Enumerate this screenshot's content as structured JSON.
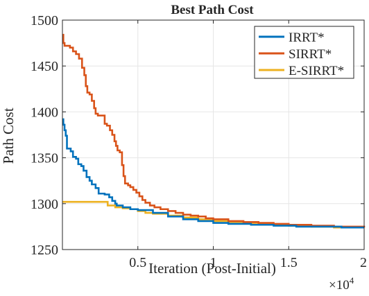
{
  "chart_data": {
    "type": "line",
    "title": "Best Path Cost",
    "xlabel": "Iteration (Post-Initial)",
    "ylabel": "Path Cost",
    "x_exponent_label": "×10",
    "x_exponent": "4",
    "xlim": [
      0,
      20000
    ],
    "ylim": [
      1250,
      1500
    ],
    "xticks": [
      {
        "value": 5000,
        "label": "0.5"
      },
      {
        "value": 10000,
        "label": "1"
      },
      {
        "value": 15000,
        "label": "1.5"
      },
      {
        "value": 20000,
        "label": "2"
      }
    ],
    "yticks": [
      {
        "value": 1250,
        "label": "1250"
      },
      {
        "value": 1300,
        "label": "1300"
      },
      {
        "value": 1350,
        "label": "1350"
      },
      {
        "value": 1400,
        "label": "1400"
      },
      {
        "value": 1450,
        "label": "1450"
      },
      {
        "value": 1500,
        "label": "1500"
      }
    ],
    "grid": true,
    "legend_position": "top-right",
    "series": [
      {
        "name": "IRRT*",
        "color": "#0072BD",
        "step": true,
        "points": [
          [
            0,
            1392
          ],
          [
            60,
            1386
          ],
          [
            140,
            1380
          ],
          [
            220,
            1374
          ],
          [
            300,
            1360
          ],
          [
            550,
            1357
          ],
          [
            700,
            1351
          ],
          [
            900,
            1349
          ],
          [
            1050,
            1343
          ],
          [
            1250,
            1341
          ],
          [
            1400,
            1336
          ],
          [
            1600,
            1329
          ],
          [
            1800,
            1325
          ],
          [
            1950,
            1321
          ],
          [
            2200,
            1317
          ],
          [
            2400,
            1311
          ],
          [
            2800,
            1310
          ],
          [
            3100,
            1307
          ],
          [
            3300,
            1303
          ],
          [
            3500,
            1300
          ],
          [
            3600,
            1298
          ],
          [
            4000,
            1296
          ],
          [
            4500,
            1294
          ],
          [
            5000,
            1293
          ],
          [
            6000,
            1290
          ],
          [
            7000,
            1286
          ],
          [
            8000,
            1283
          ],
          [
            9000,
            1281
          ],
          [
            10000,
            1279
          ],
          [
            11000,
            1278
          ],
          [
            12500,
            1277
          ],
          [
            14000,
            1276
          ],
          [
            15500,
            1275
          ],
          [
            17000,
            1275
          ],
          [
            18500,
            1274
          ],
          [
            20000,
            1274
          ]
        ]
      },
      {
        "name": "SIRRT*",
        "color": "#D95319",
        "step": true,
        "points": [
          [
            0,
            1484
          ],
          [
            60,
            1475
          ],
          [
            140,
            1472
          ],
          [
            500,
            1470
          ],
          [
            700,
            1466
          ],
          [
            900,
            1463
          ],
          [
            1100,
            1458
          ],
          [
            1300,
            1448
          ],
          [
            1450,
            1440
          ],
          [
            1550,
            1428
          ],
          [
            1650,
            1421
          ],
          [
            1800,
            1419
          ],
          [
            1950,
            1412
          ],
          [
            2100,
            1404
          ],
          [
            2200,
            1398
          ],
          [
            2350,
            1396
          ],
          [
            2600,
            1396
          ],
          [
            2800,
            1387
          ],
          [
            2950,
            1385
          ],
          [
            3150,
            1380
          ],
          [
            3300,
            1375
          ],
          [
            3450,
            1368
          ],
          [
            3550,
            1363
          ],
          [
            3650,
            1358
          ],
          [
            3800,
            1356
          ],
          [
            3950,
            1342
          ],
          [
            4050,
            1330
          ],
          [
            4150,
            1322
          ],
          [
            4350,
            1320
          ],
          [
            4500,
            1318
          ],
          [
            4700,
            1315
          ],
          [
            4900,
            1312
          ],
          [
            5100,
            1308
          ],
          [
            5300,
            1304
          ],
          [
            5500,
            1301
          ],
          [
            5800,
            1298
          ],
          [
            6100,
            1296
          ],
          [
            6500,
            1294
          ],
          [
            7000,
            1292
          ],
          [
            7500,
            1290
          ],
          [
            8000,
            1288
          ],
          [
            8500,
            1287
          ],
          [
            9000,
            1286
          ],
          [
            9500,
            1284
          ],
          [
            10000,
            1283
          ],
          [
            11000,
            1281
          ],
          [
            12000,
            1280
          ],
          [
            13000,
            1279
          ],
          [
            14000,
            1278
          ],
          [
            15000,
            1277
          ],
          [
            16500,
            1276
          ],
          [
            18000,
            1275
          ],
          [
            20000,
            1274
          ]
        ]
      },
      {
        "name": "E-SIRRT*",
        "color": "#EDB120",
        "step": true,
        "points": [
          [
            0,
            1302
          ],
          [
            2500,
            1302
          ],
          [
            3000,
            1298
          ],
          [
            3500,
            1296
          ],
          [
            4000,
            1295
          ],
          [
            4500,
            1294
          ],
          [
            5000,
            1292
          ],
          [
            5500,
            1290
          ],
          [
            6000,
            1289
          ],
          [
            7000,
            1287
          ],
          [
            8000,
            1285
          ],
          [
            9000,
            1283
          ],
          [
            10000,
            1281
          ],
          [
            11000,
            1280
          ],
          [
            12000,
            1279
          ],
          [
            13000,
            1278
          ],
          [
            14000,
            1277
          ],
          [
            15000,
            1276
          ],
          [
            16500,
            1275
          ],
          [
            18000,
            1274
          ],
          [
            20000,
            1274
          ]
        ]
      }
    ]
  }
}
